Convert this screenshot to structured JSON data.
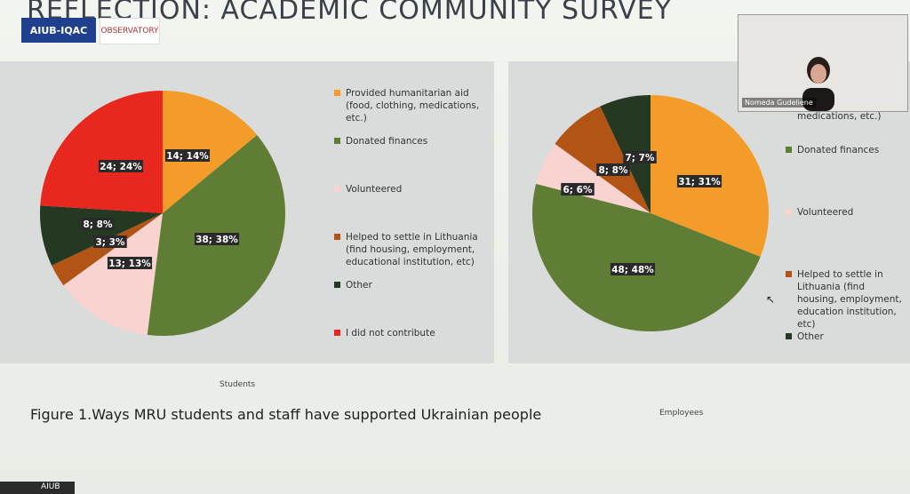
{
  "slide": {
    "title": "REFLECTION: ACADEMIC COMMUNITY SURVEY",
    "logo_left": "AIUB-IQAC",
    "logo_right": "OBSERVATORY",
    "caption": "Figure 1.Ways MRU students and staff have supported Ukrainian people",
    "students_label": "Students",
    "employees_label": "Employees"
  },
  "video": {
    "participant_name": "Nomeda Gudeliene"
  },
  "taskbar": {
    "label": "AIUB"
  },
  "colors": {
    "humanitarian": "#f39c2a",
    "finances": "#5f7d35",
    "volunteered": "#f8d3d0",
    "settle": "#b35417",
    "other": "#243822",
    "not_contribute": "#e8281e"
  },
  "legend_left": [
    {
      "label": "Provided humanitarian aid (food, clothing, medications, etc.)",
      "color_key": "humanitarian"
    },
    {
      "label": "Donated finances",
      "color_key": "finances"
    },
    {
      "label": "Volunteered",
      "color_key": "volunteered"
    },
    {
      "label": "Helped to settle in Lithuania (find housing, employment, educational institution, etc)",
      "color_key": "settle"
    },
    {
      "label": "Other",
      "color_key": "other"
    },
    {
      "label": "I did not contribute",
      "color_key": "not_contribute"
    }
  ],
  "legend_right": [
    {
      "label": "medications, etc.)",
      "color_key": ""
    },
    {
      "label": "Donated finances",
      "color_key": "finances"
    },
    {
      "label": "Volunteered",
      "color_key": "volunteered"
    },
    {
      "label": "Helped to settle in Lithuania (find housing, employment, education institution, etc)",
      "color_key": "settle"
    },
    {
      "label": "Other",
      "color_key": "other"
    }
  ],
  "chart_data": [
    {
      "type": "pie",
      "title": "Students",
      "categories": [
        "Provided humanitarian aid (food, clothing, medications, etc.)",
        "Donated finances",
        "Volunteered",
        "Helped to settle in Lithuania (find housing, employment, educational institution, etc)",
        "Other",
        "I did not contribute"
      ],
      "values": [
        14,
        38,
        13,
        3,
        8,
        24
      ],
      "labels": [
        "14; 14%",
        "38; 38%",
        "13; 13%",
        "3; 3%",
        "8; 8%",
        "24; 24%"
      ],
      "colors": [
        "#f39c2a",
        "#5f7d35",
        "#f8d3d0",
        "#b35417",
        "#243822",
        "#e8281e"
      ]
    },
    {
      "type": "pie",
      "title": "Employees",
      "categories": [
        "Provided humanitarian aid (food, clothing, medications, etc.)",
        "Donated finances",
        "Volunteered",
        "Helped to settle in Lithuania (find housing, employment, education institution, etc)",
        "Other"
      ],
      "values": [
        31,
        48,
        6,
        8,
        7
      ],
      "labels": [
        "31; 31%",
        "48; 48%",
        "6; 6%",
        "8; 8%",
        "7; 7%"
      ],
      "colors": [
        "#f39c2a",
        "#5f7d35",
        "#f8d3d0",
        "#b35417",
        "#243822"
      ]
    }
  ]
}
